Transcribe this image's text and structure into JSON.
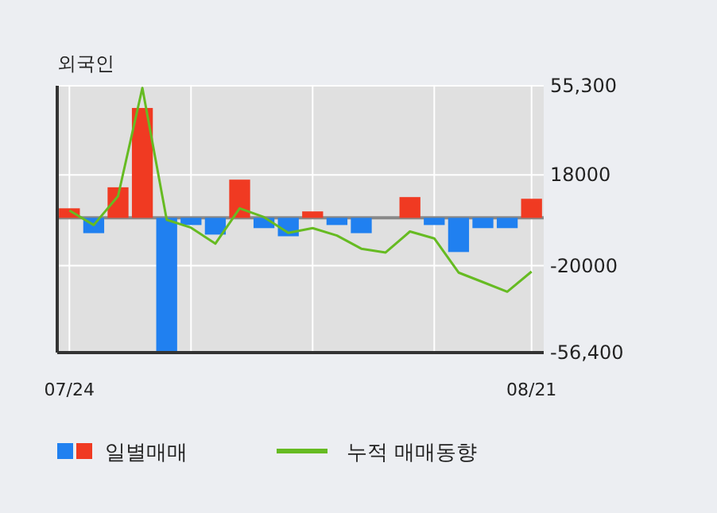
{
  "chart_data": {
    "type": "bar",
    "title": "외국인",
    "categories": [
      "07/24",
      null,
      null,
      null,
      null,
      null,
      null,
      null,
      null,
      null,
      null,
      null,
      null,
      null,
      null,
      null,
      null,
      null,
      null,
      "08/21"
    ],
    "series": [
      {
        "name": "일별매매",
        "values": [
          4000,
          -6400,
          12800,
          46000,
          -56100,
          -3000,
          -7000,
          16000,
          -4300,
          -7700,
          2700,
          -3000,
          -6400,
          0,
          8700,
          -3000,
          -14300,
          -4300,
          -4300,
          8000
        ],
        "colors": [
          "#f03a22",
          "#2080f0",
          "#f03a22",
          "#f03a22",
          "#2080f0",
          "#2080f0",
          "#2080f0",
          "#f03a22",
          "#2080f0",
          "#2080f0",
          "#f03a22",
          "#2080f0",
          "#2080f0",
          "#2080f0",
          "#f03a22",
          "#2080f0",
          "#2080f0",
          "#2080f0",
          "#2080f0",
          "#f03a22"
        ]
      },
      {
        "name": "누적 매매동향",
        "type": "line",
        "color": "#66bb22",
        "values": [
          3100,
          -3000,
          9100,
          54400,
          -800,
          -4100,
          -10800,
          4000,
          300,
          -6300,
          -4300,
          -7400,
          -12900,
          -14500,
          -5700,
          -8600,
          -22900,
          -26900,
          -30900,
          -22500
        ]
      }
    ],
    "ylim": [
      -56400,
      55300
    ],
    "yticks": [
      {
        "value": 55300,
        "label": "55,300"
      },
      18000,
      -20000,
      {
        "value": -56400,
        "label": "-56,400"
      }
    ],
    "ref_lines": [
      {
        "axis": "y",
        "value": 0,
        "color": "#888888"
      }
    ],
    "grid": true,
    "legend": "bottom",
    "marker": "none",
    "line_style": "solid"
  }
}
